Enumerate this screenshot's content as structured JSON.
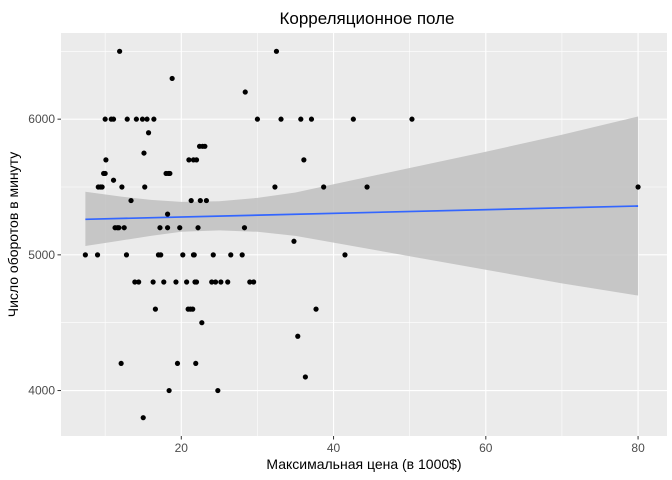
{
  "chart_data": {
    "type": "scatter",
    "title": "Корреляционное поле",
    "xlabel": "Максимальная цена (в 1000$)",
    "ylabel": "Число оборотов в минуту",
    "xlim": [
      4.2,
      83.8
    ],
    "ylim": [
      3665,
      6635
    ],
    "x_ticks": [
      20,
      40,
      60,
      80
    ],
    "x_tick_labels": [
      "20",
      "40",
      "60",
      "80"
    ],
    "y_ticks": [
      4000,
      5000,
      6000
    ],
    "y_tick_labels": [
      "4000",
      "5000",
      "6000"
    ],
    "grid": true,
    "legend": "none",
    "colors": {
      "panel": "#ebebeb",
      "grid": "#ffffff",
      "points": "#000000",
      "smooth_line": "#3366ff",
      "ribbon": "#bfbfbf"
    },
    "points": [
      {
        "x": 7.4,
        "y": 5000
      },
      {
        "x": 9.0,
        "y": 5000
      },
      {
        "x": 9.1,
        "y": 5500
      },
      {
        "x": 9.4,
        "y": 5500
      },
      {
        "x": 9.6,
        "y": 5500
      },
      {
        "x": 9.8,
        "y": 5600
      },
      {
        "x": 10.0,
        "y": 5600
      },
      {
        "x": 10.0,
        "y": 6000
      },
      {
        "x": 10.1,
        "y": 5700
      },
      {
        "x": 10.8,
        "y": 6000
      },
      {
        "x": 11.1,
        "y": 6000
      },
      {
        "x": 11.1,
        "y": 5550
      },
      {
        "x": 11.3,
        "y": 5200
      },
      {
        "x": 11.6,
        "y": 5200
      },
      {
        "x": 11.8,
        "y": 5200
      },
      {
        "x": 11.9,
        "y": 6500
      },
      {
        "x": 12.1,
        "y": 4200
      },
      {
        "x": 12.2,
        "y": 5500
      },
      {
        "x": 12.5,
        "y": 5200
      },
      {
        "x": 12.8,
        "y": 5000
      },
      {
        "x": 12.9,
        "y": 6000
      },
      {
        "x": 13.4,
        "y": 5400
      },
      {
        "x": 13.9,
        "y": 4800
      },
      {
        "x": 14.1,
        "y": 6000
      },
      {
        "x": 14.4,
        "y": 4800
      },
      {
        "x": 14.9,
        "y": 6000
      },
      {
        "x": 15.0,
        "y": 3800
      },
      {
        "x": 15.1,
        "y": 5750
      },
      {
        "x": 15.2,
        "y": 5500
      },
      {
        "x": 15.5,
        "y": 6000
      },
      {
        "x": 15.7,
        "y": 5900
      },
      {
        "x": 16.3,
        "y": 4800
      },
      {
        "x": 16.4,
        "y": 6000
      },
      {
        "x": 16.6,
        "y": 4600
      },
      {
        "x": 17.0,
        "y": 5000
      },
      {
        "x": 17.2,
        "y": 5200
      },
      {
        "x": 17.3,
        "y": 5000
      },
      {
        "x": 17.7,
        "y": 4800
      },
      {
        "x": 18.0,
        "y": 5600
      },
      {
        "x": 18.2,
        "y": 5300
      },
      {
        "x": 18.2,
        "y": 5200
      },
      {
        "x": 18.3,
        "y": 5600
      },
      {
        "x": 18.4,
        "y": 4000
      },
      {
        "x": 18.5,
        "y": 5600
      },
      {
        "x": 18.8,
        "y": 6300
      },
      {
        "x": 19.3,
        "y": 4800
      },
      {
        "x": 19.5,
        "y": 4200
      },
      {
        "x": 19.8,
        "y": 5200
      },
      {
        "x": 20.2,
        "y": 5000
      },
      {
        "x": 20.7,
        "y": 4800
      },
      {
        "x": 20.9,
        "y": 4600
      },
      {
        "x": 21.0,
        "y": 5700
      },
      {
        "x": 21.2,
        "y": 4600
      },
      {
        "x": 21.3,
        "y": 5400
      },
      {
        "x": 21.5,
        "y": 4600
      },
      {
        "x": 21.6,
        "y": 5700
      },
      {
        "x": 21.6,
        "y": 5000
      },
      {
        "x": 21.7,
        "y": 5000
      },
      {
        "x": 21.8,
        "y": 4800
      },
      {
        "x": 21.9,
        "y": 4200
      },
      {
        "x": 22.0,
        "y": 5700
      },
      {
        "x": 22.0,
        "y": 4800
      },
      {
        "x": 22.2,
        "y": 5200
      },
      {
        "x": 22.4,
        "y": 5800
      },
      {
        "x": 22.5,
        "y": 5400
      },
      {
        "x": 22.7,
        "y": 4500
      },
      {
        "x": 22.8,
        "y": 5800
      },
      {
        "x": 23.1,
        "y": 5800
      },
      {
        "x": 23.3,
        "y": 5400
      },
      {
        "x": 24.0,
        "y": 4800
      },
      {
        "x": 24.2,
        "y": 5000
      },
      {
        "x": 24.5,
        "y": 4800
      },
      {
        "x": 24.8,
        "y": 4000
      },
      {
        "x": 25.2,
        "y": 4800
      },
      {
        "x": 26.1,
        "y": 4800
      },
      {
        "x": 26.5,
        "y": 5000
      },
      {
        "x": 28.0,
        "y": 5000
      },
      {
        "x": 28.3,
        "y": 5200
      },
      {
        "x": 28.4,
        "y": 6200
      },
      {
        "x": 29.0,
        "y": 4800
      },
      {
        "x": 29.5,
        "y": 4800
      },
      {
        "x": 30.0,
        "y": 6000
      },
      {
        "x": 32.3,
        "y": 5500
      },
      {
        "x": 32.5,
        "y": 6500
      },
      {
        "x": 33.1,
        "y": 6000
      },
      {
        "x": 34.8,
        "y": 5100
      },
      {
        "x": 35.3,
        "y": 4400
      },
      {
        "x": 35.7,
        "y": 6000
      },
      {
        "x": 36.1,
        "y": 5700
      },
      {
        "x": 36.3,
        "y": 4100
      },
      {
        "x": 37.1,
        "y": 6000
      },
      {
        "x": 37.7,
        "y": 4600
      },
      {
        "x": 38.7,
        "y": 5500
      },
      {
        "x": 41.5,
        "y": 5000
      },
      {
        "x": 42.6,
        "y": 6000
      },
      {
        "x": 44.4,
        "y": 5500
      },
      {
        "x": 50.3,
        "y": 6000
      },
      {
        "x": 80.0,
        "y": 5500
      }
    ],
    "smooth": {
      "method": "linear fit with confidence band",
      "line": [
        {
          "x": 7.4,
          "y": 5262
        },
        {
          "x": 80.0,
          "y": 5360
        }
      ],
      "ribbon": [
        {
          "x": 7.4,
          "lo": 5065,
          "hi": 5465
        },
        {
          "x": 12.0,
          "lo": 5105,
          "hi": 5430
        },
        {
          "x": 16.0,
          "lo": 5140,
          "hi": 5405
        },
        {
          "x": 20.0,
          "lo": 5170,
          "hi": 5390
        },
        {
          "x": 25.0,
          "lo": 5180,
          "hi": 5395
        },
        {
          "x": 30.0,
          "lo": 5170,
          "hi": 5420
        },
        {
          "x": 35.0,
          "lo": 5140,
          "hi": 5460
        },
        {
          "x": 40.0,
          "lo": 5090,
          "hi": 5520
        },
        {
          "x": 50.0,
          "lo": 4990,
          "hi": 5640
        },
        {
          "x": 60.0,
          "lo": 4890,
          "hi": 5760
        },
        {
          "x": 70.0,
          "lo": 4790,
          "hi": 5885
        },
        {
          "x": 80.0,
          "lo": 4700,
          "hi": 6020
        }
      ]
    }
  }
}
